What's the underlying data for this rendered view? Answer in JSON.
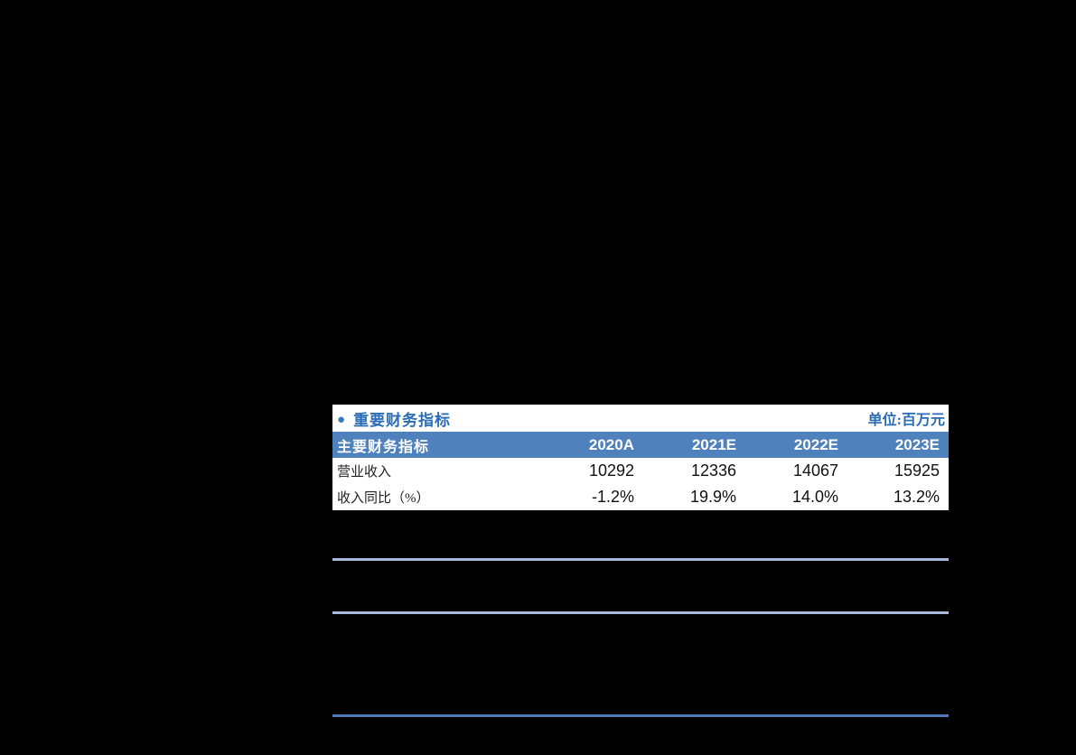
{
  "page": {
    "background_color": "#000000"
  },
  "table": {
    "bullet": "●",
    "section_title": "重要财务指标",
    "unit_label": "单位:百万元",
    "header": [
      "主要财务指标",
      "2020A",
      "2021E",
      "2022E",
      "2023E"
    ],
    "rows": [
      {
        "label": "营业收入",
        "values": [
          "10292",
          "12336",
          "14067",
          "15925"
        ]
      },
      {
        "label": "收入同比（%）",
        "values": [
          "-1.2%",
          "19.9%",
          "14.0%",
          "13.2%"
        ]
      }
    ],
    "colors": {
      "header_bg": "#4f81bd",
      "header_text": "#ffffff",
      "title_text": "#2a6cb5",
      "body_text": "#111111",
      "table_bg": "#ffffff"
    }
  },
  "dividers": {
    "light_color": "#a7b9d8",
    "dark_color": "#4e79bc"
  }
}
